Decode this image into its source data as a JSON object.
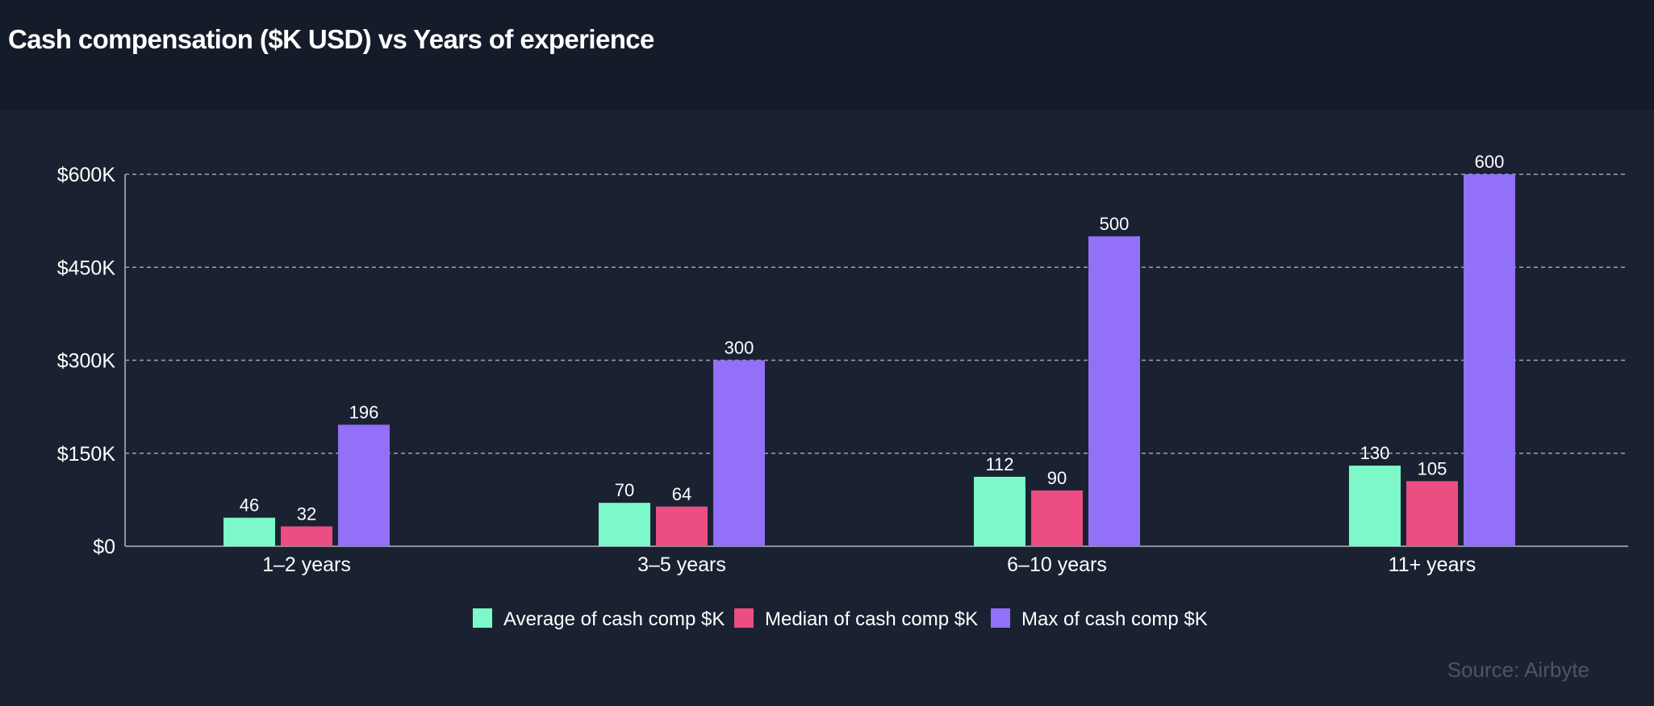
{
  "header": {
    "title": "Cash compensation ($K USD) vs Years of experience"
  },
  "footer": {
    "source": "Source: Airbyte"
  },
  "colors": {
    "background": "#1a2232",
    "header_background": "#151c29",
    "average": "#7df9c9",
    "median": "#ec4d82",
    "max": "#9270f7",
    "grid": "#9aa2b1",
    "axis": "#8a919e"
  },
  "chart_data": {
    "type": "bar",
    "title": "Cash compensation ($K USD) vs Years of experience",
    "xlabel": "",
    "ylabel": "",
    "categories": [
      "1–2 years",
      "3–5 years",
      "6–10 years",
      "11+ years"
    ],
    "series": [
      {
        "name": "Average of cash comp $K",
        "color": "#7df9c9",
        "values": [
          46,
          70,
          112,
          130
        ]
      },
      {
        "name": "Median of cash comp $K",
        "color": "#ec4d82",
        "values": [
          32,
          64,
          90,
          105
        ]
      },
      {
        "name": "Max of cash comp $K",
        "color": "#9270f7",
        "values": [
          196,
          300,
          500,
          600
        ]
      }
    ],
    "ylim": [
      0,
      600
    ],
    "yticks": [
      0,
      150,
      300,
      450,
      600
    ],
    "ytick_labels": [
      "$0",
      "$150K",
      "$300K",
      "$450K",
      "$600K"
    ],
    "grid": true,
    "legend": "bottom-center",
    "data_labels": true
  }
}
